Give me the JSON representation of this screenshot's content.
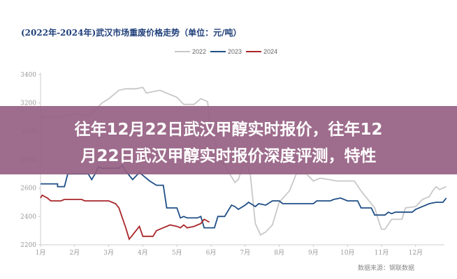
{
  "banner": {
    "line1": "往年12月22日武汉甲醇实时报价，往年12",
    "line2": "月22日武汉甲醇实时报价深度评测，特性"
  },
  "chart_data": {
    "type": "line",
    "title": "(2022年-2024年)武汉市场重废价格走势（单位：元/吨）",
    "source": "数据来源：钢联数据",
    "xlabel": "",
    "ylabel": "",
    "ylim": [
      2200,
      3400
    ],
    "yticks": [
      "2200",
      "2400",
      "2600",
      "2800",
      "3000",
      "3200",
      "3400"
    ],
    "xticks": [
      "1月",
      "2月",
      "3月",
      "4月",
      "5月",
      "6月",
      "7月",
      "8月",
      "9月",
      "10月",
      "11月",
      "12月"
    ],
    "legend_position": "top-center",
    "grid": false,
    "series": [
      {
        "name": "2022",
        "color": "#c8c8c8",
        "points": [
          [
            1.0,
            3100
          ],
          [
            1.5,
            3100
          ],
          [
            2.0,
            3120
          ],
          [
            2.4,
            3110
          ],
          [
            2.6,
            3150
          ],
          [
            2.8,
            3200
          ],
          [
            3.0,
            3230
          ],
          [
            3.3,
            3290
          ],
          [
            3.5,
            3300
          ],
          [
            3.8,
            3300
          ],
          [
            4.0,
            3310
          ],
          [
            4.1,
            3270
          ],
          [
            4.5,
            3290
          ],
          [
            4.8,
            3260
          ],
          [
            5.0,
            3240
          ],
          [
            5.2,
            3190
          ],
          [
            5.5,
            3190
          ],
          [
            5.7,
            3230
          ],
          [
            5.9,
            3210
          ],
          [
            6.0,
            3000
          ],
          [
            6.3,
            2800
          ],
          [
            6.7,
            2640
          ],
          [
            6.8,
            2660
          ],
          [
            7.0,
            2800
          ],
          [
            7.15,
            2700
          ],
          [
            7.3,
            2350
          ],
          [
            7.45,
            2270
          ],
          [
            7.6,
            2290
          ],
          [
            7.8,
            2340
          ],
          [
            8.0,
            2500
          ],
          [
            8.3,
            2580
          ],
          [
            8.5,
            2700
          ],
          [
            8.8,
            2700
          ],
          [
            9.0,
            2650
          ],
          [
            9.2,
            2670
          ],
          [
            9.7,
            2650
          ],
          [
            10.2,
            2650
          ],
          [
            10.4,
            2580
          ],
          [
            10.6,
            2520
          ],
          [
            10.8,
            2460
          ],
          [
            10.9,
            2380
          ],
          [
            11.0,
            2310
          ],
          [
            11.1,
            2310
          ],
          [
            11.3,
            2380
          ],
          [
            11.6,
            2380
          ],
          [
            11.7,
            2460
          ],
          [
            12.0,
            2470
          ],
          [
            12.2,
            2520
          ],
          [
            12.4,
            2540
          ],
          [
            12.5,
            2580
          ],
          [
            12.6,
            2610
          ],
          [
            12.7,
            2590
          ],
          [
            12.9,
            2610
          ]
        ]
      },
      {
        "name": "2023",
        "color": "#1f4e85",
        "points": [
          [
            1.0,
            2630
          ],
          [
            1.5,
            2630
          ],
          [
            1.5,
            2610
          ],
          [
            1.7,
            2610
          ],
          [
            1.8,
            2700
          ],
          [
            2.4,
            2700
          ],
          [
            2.5,
            2660
          ],
          [
            2.6,
            2700
          ],
          [
            2.7,
            2750
          ],
          [
            2.8,
            2740
          ],
          [
            3.3,
            2740
          ],
          [
            3.4,
            2760
          ],
          [
            3.5,
            2720
          ],
          [
            3.7,
            2660
          ],
          [
            3.9,
            2710
          ],
          [
            4.2,
            2650
          ],
          [
            4.4,
            2620
          ],
          [
            4.6,
            2620
          ],
          [
            4.7,
            2460
          ],
          [
            5.0,
            2460
          ],
          [
            5.1,
            2390
          ],
          [
            5.2,
            2400
          ],
          [
            5.3,
            2390
          ],
          [
            5.6,
            2390
          ],
          [
            5.7,
            2400
          ],
          [
            5.8,
            2320
          ],
          [
            6.1,
            2320
          ],
          [
            6.2,
            2400
          ],
          [
            6.4,
            2400
          ],
          [
            6.5,
            2440
          ],
          [
            6.6,
            2480
          ],
          [
            6.7,
            2470
          ],
          [
            6.8,
            2450
          ],
          [
            7.0,
            2480
          ],
          [
            7.1,
            2500
          ],
          [
            7.3,
            2470
          ],
          [
            7.4,
            2490
          ],
          [
            7.6,
            2480
          ],
          [
            7.8,
            2510
          ],
          [
            8.0,
            2510
          ],
          [
            8.1,
            2490
          ],
          [
            9.0,
            2490
          ],
          [
            9.1,
            2510
          ],
          [
            9.5,
            2510
          ],
          [
            9.6,
            2520
          ],
          [
            9.8,
            2530
          ],
          [
            10.0,
            2510
          ],
          [
            10.3,
            2510
          ],
          [
            10.4,
            2460
          ],
          [
            10.7,
            2460
          ],
          [
            10.8,
            2410
          ],
          [
            11.1,
            2410
          ],
          [
            11.2,
            2430
          ],
          [
            11.3,
            2420
          ],
          [
            11.4,
            2430
          ],
          [
            11.9,
            2430
          ],
          [
            12.0,
            2450
          ],
          [
            12.2,
            2470
          ],
          [
            12.4,
            2490
          ],
          [
            12.6,
            2500
          ],
          [
            12.8,
            2500
          ],
          [
            12.9,
            2530
          ]
        ]
      },
      {
        "name": "2024",
        "color": "#a8262a",
        "points": [
          [
            1.0,
            2530
          ],
          [
            1.05,
            2550
          ],
          [
            1.2,
            2530
          ],
          [
            1.3,
            2510
          ],
          [
            1.6,
            2510
          ],
          [
            1.7,
            2520
          ],
          [
            2.2,
            2520
          ],
          [
            2.3,
            2510
          ],
          [
            3.0,
            2510
          ],
          [
            3.2,
            2490
          ],
          [
            3.3,
            2460
          ],
          [
            3.4,
            2390
          ],
          [
            3.5,
            2320
          ],
          [
            3.6,
            2240
          ],
          [
            3.7,
            2270
          ],
          [
            3.9,
            2330
          ],
          [
            4.0,
            2260
          ],
          [
            4.3,
            2260
          ],
          [
            4.4,
            2300
          ],
          [
            4.6,
            2320
          ],
          [
            4.8,
            2340
          ],
          [
            5.0,
            2330
          ],
          [
            5.1,
            2320
          ],
          [
            5.2,
            2340
          ],
          [
            5.3,
            2320
          ],
          [
            5.5,
            2330
          ],
          [
            5.7,
            2350
          ],
          [
            5.8,
            2380
          ],
          [
            5.95,
            2360
          ]
        ]
      }
    ]
  }
}
